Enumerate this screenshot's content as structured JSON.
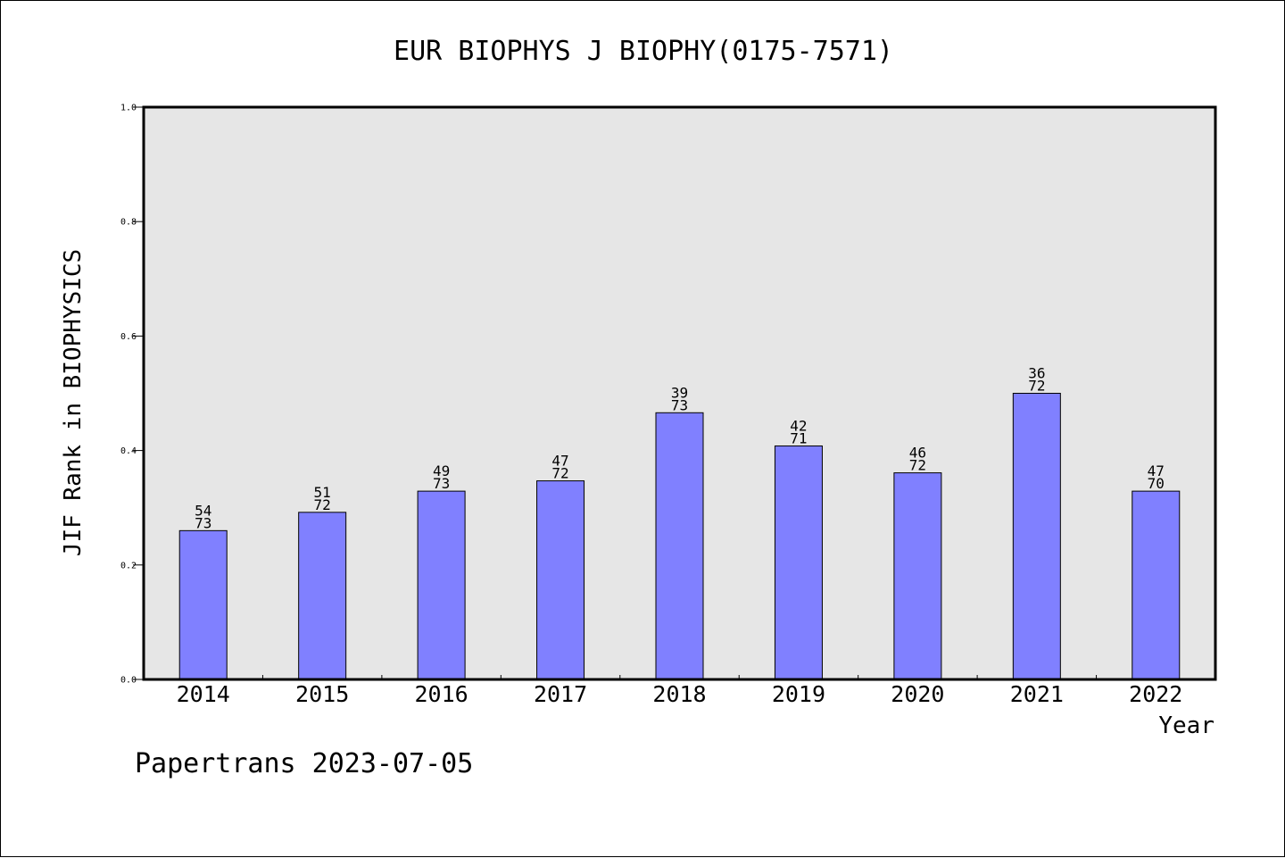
{
  "chart_data": {
    "type": "bar",
    "title": "EUR BIOPHYS J BIOPHY(0175-7571)",
    "xlabel": "Year",
    "ylabel": "JIF Rank in BIOPHYSICS",
    "categories": [
      "2014",
      "2015",
      "2016",
      "2017",
      "2018",
      "2019",
      "2020",
      "2021",
      "2022"
    ],
    "values": [
      0.26,
      0.292,
      0.329,
      0.347,
      0.466,
      0.408,
      0.361,
      0.5,
      0.329
    ],
    "rank_labels": [
      {
        "rank": "54",
        "total": "73"
      },
      {
        "rank": "51",
        "total": "72"
      },
      {
        "rank": "49",
        "total": "73"
      },
      {
        "rank": "47",
        "total": "72"
      },
      {
        "rank": "39",
        "total": "73"
      },
      {
        "rank": "42",
        "total": "71"
      },
      {
        "rank": "46",
        "total": "72"
      },
      {
        "rank": "36",
        "total": "72"
      },
      {
        "rank": "47",
        "total": "70"
      }
    ],
    "ylim": [
      0.0,
      1.0
    ],
    "yticks": [
      "0.0",
      "0.2",
      "0.4",
      "0.6",
      "0.8",
      "1.0"
    ],
    "grid": false,
    "colors": {
      "bar": "#8080ff",
      "plot_background": "#e6e6e6",
      "axis": "#000000"
    }
  },
  "footer": {
    "text": "Papertrans 2023-07-05"
  }
}
